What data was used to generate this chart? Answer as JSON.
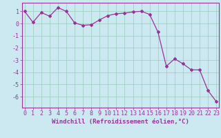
{
  "x": [
    0,
    1,
    2,
    3,
    4,
    5,
    6,
    7,
    8,
    9,
    10,
    11,
    12,
    13,
    14,
    15,
    16,
    17,
    18,
    19,
    20,
    21,
    22,
    23
  ],
  "y": [
    1.0,
    0.1,
    0.9,
    0.6,
    1.3,
    1.0,
    0.05,
    -0.15,
    -0.1,
    0.3,
    0.65,
    0.8,
    0.85,
    0.95,
    1.0,
    0.75,
    -0.7,
    -3.5,
    -2.9,
    -3.3,
    -3.8,
    -3.8,
    -5.5,
    -6.4
  ],
  "line_color": "#993399",
  "marker": "D",
  "marker_size": 2.0,
  "linewidth": 0.9,
  "xlabel": "Windchill (Refroidissement éolien,°C)",
  "xlabel_color": "#993399",
  "xlabel_fontsize": 6.5,
  "xtick_labels": [
    "0",
    "1",
    "2",
    "3",
    "4",
    "5",
    "6",
    "7",
    "8",
    "9",
    "10",
    "11",
    "12",
    "13",
    "14",
    "15",
    "16",
    "17",
    "18",
    "19",
    "20",
    "21",
    "22",
    "23"
  ],
  "ytick_vals": [
    1,
    0,
    -1,
    -2,
    -3,
    -4,
    -5,
    -6
  ],
  "ylim": [
    -6.9,
    1.7
  ],
  "xlim": [
    -0.3,
    23.3
  ],
  "bg_color": "#cce8f0",
  "grid_color": "#99ccbb",
  "tick_color": "#993399",
  "tick_fontsize": 6.0,
  "spine_color": "#993399"
}
